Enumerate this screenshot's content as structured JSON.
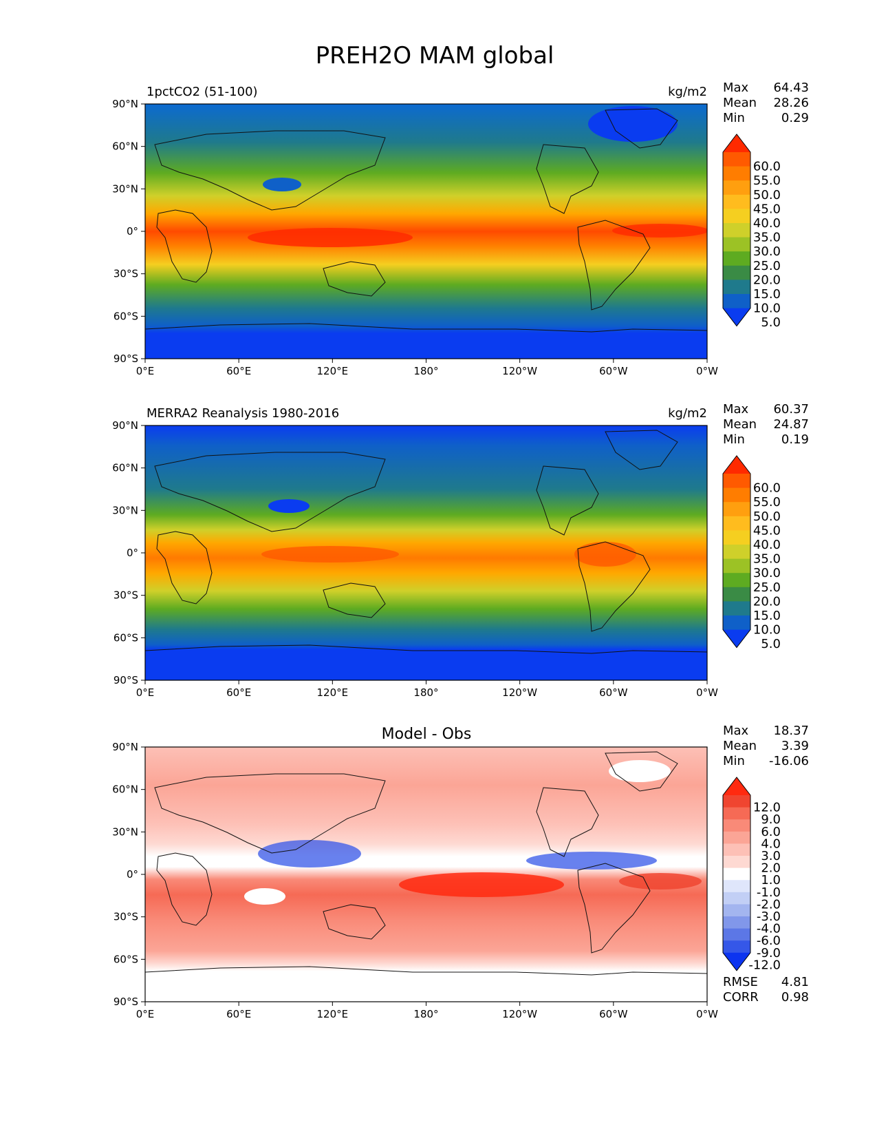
{
  "title": "PREH2O MAM global",
  "chart_data": [
    {
      "type": "heatmap",
      "panel_title_left": "1pctCO2 (51-100)",
      "units": "kg/m2",
      "stats": [
        {
          "label": "Max",
          "value": "64.43"
        },
        {
          "label": "Mean",
          "value": "28.26"
        },
        {
          "label": "Min",
          "value": "0.29"
        }
      ],
      "xticks": [
        "0°E",
        "60°E",
        "120°E",
        "180°",
        "120°W",
        "60°W",
        "0°W"
      ],
      "yticks": [
        "90°N",
        "60°N",
        "30°N",
        "0°",
        "30°S",
        "60°S",
        "90°S"
      ],
      "colorbar": {
        "labels": [
          "60.0",
          "55.0",
          "50.0",
          "45.0",
          "40.0",
          "35.0",
          "30.0",
          "25.0",
          "20.0",
          "15.0",
          "10.0",
          "5.0"
        ],
        "colors": [
          "#ff2a00",
          "#ff5a00",
          "#ff7d00",
          "#ff9f0f",
          "#ffbc1e",
          "#f5cf20",
          "#cfd02a",
          "#9cc225",
          "#5eab21",
          "#3a8b45",
          "#1f7a8c",
          "#0f60c8",
          "#0a3cf0"
        ]
      }
    },
    {
      "type": "heatmap",
      "panel_title_left": "MERRA2 Reanalysis 1980-2016",
      "units": "kg/m2",
      "stats": [
        {
          "label": "Max",
          "value": "60.37"
        },
        {
          "label": "Mean",
          "value": "24.87"
        },
        {
          "label": "Min",
          "value": "0.19"
        }
      ],
      "xticks": [
        "0°E",
        "60°E",
        "120°E",
        "180°",
        "120°W",
        "60°W",
        "0°W"
      ],
      "yticks": [
        "90°N",
        "60°N",
        "30°N",
        "0°",
        "30°S",
        "60°S",
        "90°S"
      ],
      "colorbar": {
        "labels": [
          "60.0",
          "55.0",
          "50.0",
          "45.0",
          "40.0",
          "35.0",
          "30.0",
          "25.0",
          "20.0",
          "15.0",
          "10.0",
          "5.0"
        ],
        "colors": [
          "#ff2a00",
          "#ff5a00",
          "#ff7d00",
          "#ff9f0f",
          "#ffbc1e",
          "#f5cf20",
          "#cfd02a",
          "#9cc225",
          "#5eab21",
          "#3a8b45",
          "#1f7a8c",
          "#0f60c8",
          "#0a3cf0"
        ]
      }
    },
    {
      "type": "heatmap",
      "panel_title_center": "Model - Obs",
      "stats": [
        {
          "label": "Max",
          "value": "18.37"
        },
        {
          "label": "Mean",
          "value": "3.39"
        },
        {
          "label": "Min",
          "value": "-16.06"
        }
      ],
      "metrics": [
        {
          "label": "RMSE",
          "value": "4.81"
        },
        {
          "label": "CORR",
          "value": "0.98"
        }
      ],
      "xticks": [
        "0°E",
        "60°E",
        "120°E",
        "180°",
        "120°W",
        "60°W",
        "0°W"
      ],
      "yticks": [
        "90°N",
        "60°N",
        "30°N",
        "0°",
        "30°S",
        "60°S",
        "90°S"
      ],
      "colorbar": {
        "labels": [
          "12.0",
          "9.0",
          "6.0",
          "4.0",
          "3.0",
          "2.0",
          "1.0",
          "-1.0",
          "-2.0",
          "-3.0",
          "-4.0",
          "-6.0",
          "-9.0",
          "-12.0"
        ],
        "colors": [
          "#ff2a10",
          "#f04530",
          "#f66a55",
          "#f98a78",
          "#fba596",
          "#fdc0b6",
          "#fed9d2",
          "#ffffff",
          "#dfe6fb",
          "#c2cff5",
          "#a3b5ef",
          "#8197ea",
          "#5c77e6",
          "#3557e8",
          "#0c34f0"
        ]
      }
    }
  ]
}
